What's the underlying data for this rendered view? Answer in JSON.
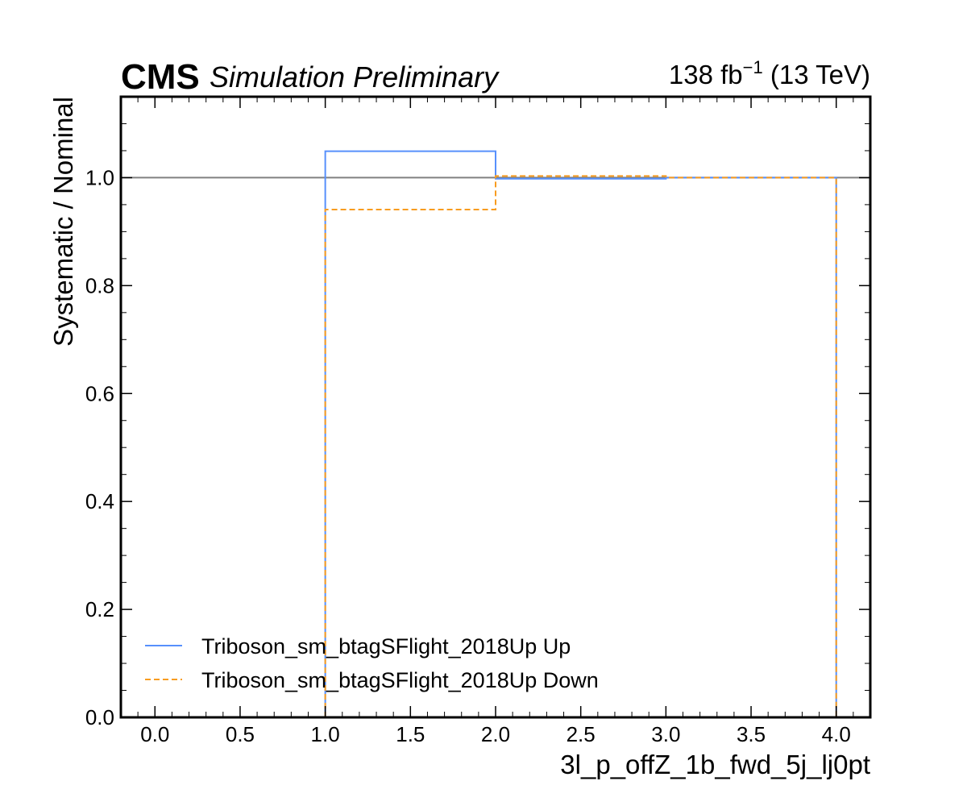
{
  "header": {
    "experiment": "CMS",
    "status": "Simulation Preliminary",
    "lumi_value": "138 fb",
    "lumi_exponent": "−1",
    "lumi_energy": " (13 TeV)"
  },
  "chart_data": {
    "type": "line",
    "xlabel": "3l_p_offZ_1b_fwd_5j_lj0pt",
    "ylabel": "Systematic / Nominal",
    "xlim": [
      -0.2,
      4.2
    ],
    "ylim": [
      0.0,
      1.15
    ],
    "x_ticks": [
      "0.0",
      "0.5",
      "1.0",
      "1.5",
      "2.0",
      "2.5",
      "3.0",
      "3.5",
      "4.0"
    ],
    "y_ticks": [
      "0.0",
      "0.2",
      "0.4",
      "0.6",
      "0.8",
      "1.0"
    ],
    "reference_line": 1.0,
    "grid": false,
    "legend_position": "bottom-left",
    "series": [
      {
        "name": "Triboson_sm_btagSFlight_2018Up Up",
        "style": "solid",
        "color": "#5790fc",
        "steps": [
          {
            "x0": 1.0,
            "x1": 2.0,
            "y": 1.049
          },
          {
            "x0": 2.0,
            "x1": 3.0,
            "y": 0.998
          },
          {
            "x0": 3.0,
            "x1": 4.0,
            "y": 1.0
          }
        ]
      },
      {
        "name": "Triboson_sm_btagSFlight_2018Up Down",
        "style": "dashed",
        "color": "#f89c20",
        "steps": [
          {
            "x0": 1.0,
            "x1": 2.0,
            "y": 0.941
          },
          {
            "x0": 2.0,
            "x1": 3.0,
            "y": 1.003
          },
          {
            "x0": 3.0,
            "x1": 4.0,
            "y": 1.0
          }
        ]
      }
    ]
  }
}
